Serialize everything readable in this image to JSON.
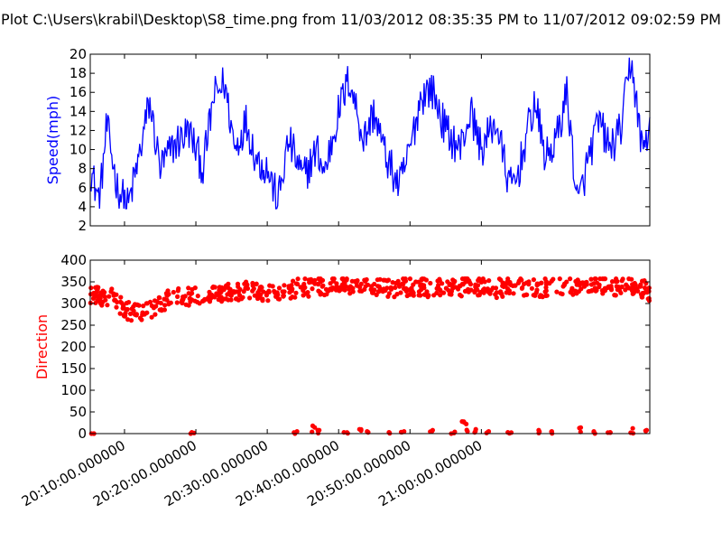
{
  "window": {
    "title": "Plot C:\\Users\\krabil\\Desktop\\S8_time.png from 11/03/2012 08:35:35 PM to 11/07/2012 09:02:59 PM"
  },
  "colors": {
    "speed": "#0000ff",
    "direction": "#ff0000",
    "axes": "#000000"
  },
  "chart_data": [
    {
      "type": "line",
      "ylabel": "Speed(mph)",
      "ylim": [
        2,
        20
      ],
      "yticks": [
        "2",
        "4",
        "6",
        "8",
        "10",
        "12",
        "14",
        "16",
        "18",
        "20"
      ],
      "xlim_minutes": [
        20.052,
        21.068
      ],
      "grid": false,
      "series": [
        {
          "color": "#0000ff",
          "keypoints": [
            {
              "t": "20:05:12",
              "v": 8
            },
            {
              "t": "20:06:30",
              "v": 4.5
            },
            {
              "t": "20:07:30",
              "v": 12.5
            },
            {
              "t": "20:09:00",
              "v": 6
            },
            {
              "t": "20:10:30",
              "v": 4
            },
            {
              "t": "20:12:00",
              "v": 9
            },
            {
              "t": "20:13:30",
              "v": 15
            },
            {
              "t": "20:15:00",
              "v": 8
            },
            {
              "t": "20:17:00",
              "v": 10.5
            },
            {
              "t": "20:19:00",
              "v": 12
            },
            {
              "t": "20:21:00",
              "v": 8
            },
            {
              "t": "20:22:30",
              "v": 15.5
            },
            {
              "t": "20:24:00",
              "v": 17
            },
            {
              "t": "20:25:30",
              "v": 10
            },
            {
              "t": "20:27:00",
              "v": 13
            },
            {
              "t": "20:28:30",
              "v": 9
            },
            {
              "t": "20:30:00",
              "v": 8
            },
            {
              "t": "20:31:30",
              "v": 4.5
            },
            {
              "t": "20:33:00",
              "v": 11
            },
            {
              "t": "20:35:00",
              "v": 7
            },
            {
              "t": "20:37:00",
              "v": 10
            },
            {
              "t": "20:38:00",
              "v": 7.5
            },
            {
              "t": "20:40:00",
              "v": 14
            },
            {
              "t": "20:41:30",
              "v": 17.5
            },
            {
              "t": "20:43:30",
              "v": 11
            },
            {
              "t": "20:45:00",
              "v": 14
            },
            {
              "t": "20:46:30",
              "v": 9.5
            },
            {
              "t": "20:48:30",
              "v": 6
            },
            {
              "t": "20:50:00",
              "v": 10
            },
            {
              "t": "20:51:30",
              "v": 15.5
            },
            {
              "t": "20:53:00",
              "v": 16.5
            },
            {
              "t": "20:55:00",
              "v": 12
            },
            {
              "t": "20:57:00",
              "v": 10
            },
            {
              "t": "20:58:30",
              "v": 14
            },
            {
              "t": "21:00:00",
              "v": 10
            },
            {
              "t": "21:02:00",
              "v": 13
            },
            {
              "t": "21:04:00",
              "v": 6
            },
            {
              "t": "21:05:00",
              "v": 7
            },
            {
              "t": "21:06:30",
              "v": 12
            },
            {
              "t": "21:07:30",
              "v": 15
            },
            {
              "t": "21:09:00",
              "v": 9
            },
            {
              "t": "21:10:30",
              "v": 11
            },
            {
              "t": "21:12:00",
              "v": 16
            },
            {
              "t": "21:13:30",
              "v": 4
            },
            {
              "t": "21:15:00",
              "v": 9
            },
            {
              "t": "21:16:30",
              "v": 13
            },
            {
              "t": "21:18:00",
              "v": 10
            },
            {
              "t": "21:19:30",
              "v": 12
            },
            {
              "t": "21:21:00",
              "v": 19.5
            },
            {
              "t": "21:22:30",
              "v": 10
            },
            {
              "t": "21:23:30",
              "v": 12
            }
          ]
        }
      ]
    },
    {
      "type": "scatter",
      "ylabel": "Direction",
      "ylim": [
        0,
        400
      ],
      "yticks": [
        "0",
        "50",
        "100",
        "150",
        "200",
        "250",
        "300",
        "350",
        "400"
      ],
      "grid": false,
      "xticks": [
        "20:10:00.000000",
        "20:20:00.000000",
        "20:30:00.000000",
        "20:40:00.000000",
        "20:50:00.000000",
        "21:00:00.000000"
      ],
      "series": [
        {
          "color": "#ff0000",
          "main_band": [
            {
              "t": "20:05:12",
              "v": 320
            },
            {
              "t": "20:08:00",
              "v": 315
            },
            {
              "t": "20:10:00",
              "v": 285
            },
            {
              "t": "20:12:00",
              "v": 275
            },
            {
              "t": "20:14:00",
              "v": 290
            },
            {
              "t": "20:16:00",
              "v": 310
            },
            {
              "t": "20:20:00",
              "v": 320
            },
            {
              "t": "20:24:00",
              "v": 325
            },
            {
              "t": "20:28:00",
              "v": 330
            },
            {
              "t": "20:30:00",
              "v": 320
            },
            {
              "t": "20:34:00",
              "v": 335
            },
            {
              "t": "20:38:00",
              "v": 340
            },
            {
              "t": "20:42:00",
              "v": 345
            },
            {
              "t": "20:46:00",
              "v": 335
            },
            {
              "t": "20:50:00",
              "v": 340
            },
            {
              "t": "20:54:00",
              "v": 335
            },
            {
              "t": "20:58:00",
              "v": 340
            },
            {
              "t": "21:02:00",
              "v": 335
            },
            {
              "t": "21:06:00",
              "v": 340
            },
            {
              "t": "21:10:00",
              "v": 335
            },
            {
              "t": "21:14:00",
              "v": 345
            },
            {
              "t": "21:18:00",
              "v": 340
            },
            {
              "t": "21:22:00",
              "v": 340
            },
            {
              "t": "21:23:30",
              "v": 325
            }
          ],
          "near_zero": [
            {
              "t": "20:05:30",
              "v": 0
            },
            {
              "t": "20:19:30",
              "v": 3
            },
            {
              "t": "20:34:00",
              "v": 5
            },
            {
              "t": "20:36:30",
              "v": 18
            },
            {
              "t": "20:37:00",
              "v": 8
            },
            {
              "t": "20:41:00",
              "v": 3
            },
            {
              "t": "20:43:00",
              "v": 10
            },
            {
              "t": "20:44:00",
              "v": 5
            },
            {
              "t": "20:47:00",
              "v": 3
            },
            {
              "t": "20:49:00",
              "v": 5
            },
            {
              "t": "20:53:00",
              "v": 8
            },
            {
              "t": "20:56:00",
              "v": 4
            },
            {
              "t": "20:57:30",
              "v": 28
            },
            {
              "t": "20:58:00",
              "v": 22
            },
            {
              "t": "20:59:00",
              "v": 10
            },
            {
              "t": "21:01:00",
              "v": 5
            },
            {
              "t": "21:04:00",
              "v": 3
            },
            {
              "t": "21:08:00",
              "v": 8
            },
            {
              "t": "21:10:00",
              "v": 5
            },
            {
              "t": "21:14:00",
              "v": 14
            },
            {
              "t": "21:16:00",
              "v": 5
            },
            {
              "t": "21:18:00",
              "v": 3
            },
            {
              "t": "21:21:00",
              "v": 12
            },
            {
              "t": "21:23:00",
              "v": 8
            }
          ]
        }
      ]
    }
  ]
}
